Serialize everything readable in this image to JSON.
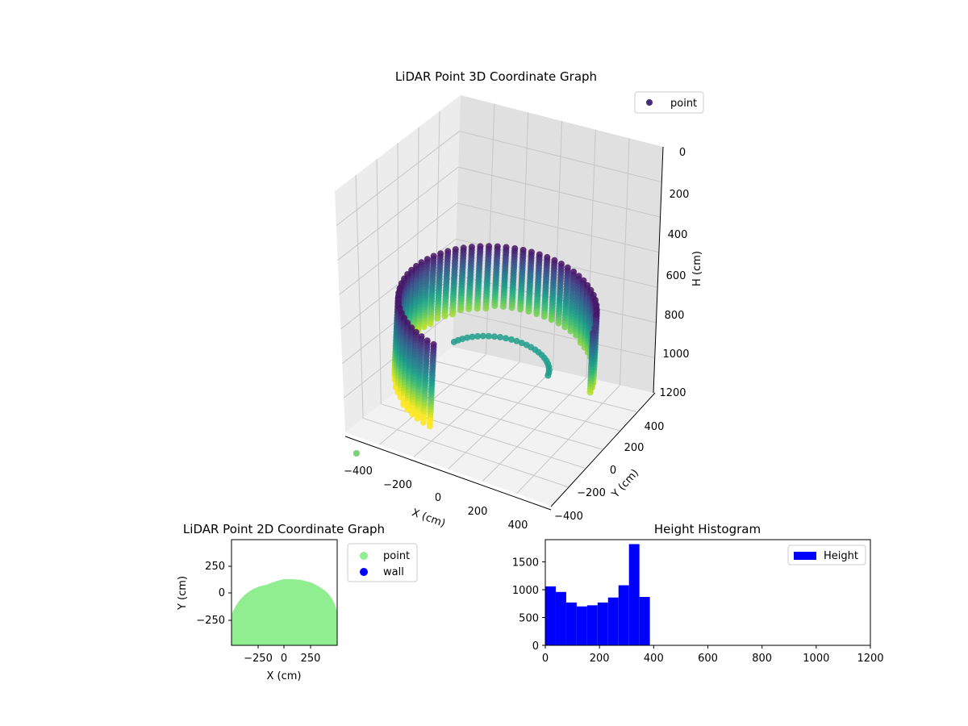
{
  "chart_data": [
    {
      "type": "scatter",
      "projection": "3d",
      "title": "LiDAR Point 3D Coordinate Graph",
      "xlabel": "X (cm)",
      "ylabel": "Y (cm)",
      "zlabel": "H (cm)",
      "xlim": [
        -500,
        500
      ],
      "ylim": [
        -500,
        500
      ],
      "zlim": [
        1200,
        0
      ],
      "x_ticks": [
        "−400",
        "−200",
        "0",
        "200",
        "400"
      ],
      "y_ticks": [
        "−400",
        "−200",
        "0",
        "200",
        "400"
      ],
      "z_ticks": [
        "0",
        "200",
        "400",
        "600",
        "800",
        "1000",
        "1200"
      ],
      "z_inverted": true,
      "colormap": "viridis",
      "color_by": "height",
      "legend": {
        "position": "top-right",
        "entries": [
          {
            "label": "point",
            "color": "#472c7a"
          }
        ]
      },
      "description_points": [
        {
          "name": "semicircular ring of points",
          "radius_approx": 430,
          "height_range": [
            0,
            380
          ]
        },
        {
          "name": "outlier",
          "x": -450,
          "y": -400,
          "h": 700
        }
      ]
    },
    {
      "type": "scatter",
      "title": "LiDAR Point 2D Coordinate Graph",
      "xlabel": "X (cm)",
      "ylabel": "Y (cm)",
      "xlim": [
        -500,
        500
      ],
      "ylim": [
        -500,
        500
      ],
      "x_ticks": [
        "−250",
        "0",
        "250"
      ],
      "y_ticks": [
        "250",
        "0",
        "−250"
      ],
      "legend": {
        "position": "outside-right",
        "entries": [
          {
            "label": "point",
            "color": "#90ee90"
          },
          {
            "label": "wall",
            "color": "#0000ff"
          }
        ]
      }
    },
    {
      "type": "bar",
      "title": "Height Histogram",
      "xlim": [
        0,
        1200
      ],
      "ylim": [
        0,
        1900
      ],
      "x_ticks": [
        "0",
        "200",
        "400",
        "600",
        "800",
        "1000",
        "1200"
      ],
      "y_ticks": [
        "0",
        "500",
        "1000",
        "1500"
      ],
      "bin_width": 38.6,
      "bin_edges_start": 0,
      "values": [
        1060,
        960,
        770,
        700,
        720,
        770,
        860,
        1080,
        1820,
        870
      ],
      "color": "#0000ff",
      "legend": {
        "position": "top-right",
        "entries": [
          {
            "label": "Height",
            "color": "#0000ff"
          }
        ]
      }
    }
  ]
}
